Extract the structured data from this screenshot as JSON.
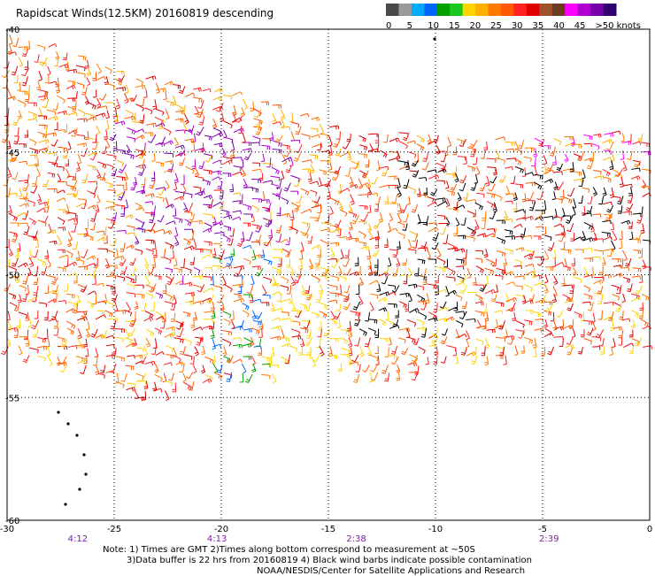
{
  "header": {
    "title": "Rapidscat Winds(12.5KM) 20160819 descending"
  },
  "legend": {
    "units": "knots",
    "colors": [
      "#4a4a4a",
      "#9a9a9a",
      "#00aaff",
      "#0066ff",
      "#00a000",
      "#1cc81c",
      "#ffd400",
      "#ffb000",
      "#ff7a00",
      "#ff5a00",
      "#ff2020",
      "#e00000",
      "#a0522d",
      "#6b3a1f",
      "#ff00ff",
      "#b000d0",
      "#7700aa",
      "#300070"
    ],
    "labels": [
      "0",
      "5",
      "10",
      "15",
      "20",
      "25",
      "30",
      "35",
      "40",
      "45",
      ">50 knots"
    ]
  },
  "map": {
    "lon_ticks": [
      "-30",
      "-25",
      "-20",
      "-15",
      "-10",
      "-5",
      "0"
    ],
    "lat_ticks": [
      "-40",
      "-45",
      "-50",
      "-55",
      "-60"
    ],
    "time_labels": [
      "4:12",
      "4:13",
      "2:38",
      "2:39"
    ],
    "swath_upper": {
      "colors": [
        "#ff2020",
        "#ff5a00",
        "#ff7a00",
        "#ffb000",
        "#e00000",
        "#b000d0",
        "#7700aa",
        "#000000",
        "#ff00ff"
      ]
    },
    "swath_lower": {
      "colors": [
        "#ff2020",
        "#ff5a00",
        "#ff7a00",
        "#ffd400",
        "#e00000",
        "#000000",
        "#b000d0",
        "#00a000",
        "#0066ff"
      ]
    }
  },
  "notes": {
    "line1": "Note: 1) Times are GMT 2)Times along bottom correspond to measurement at ~50S",
    "line2": "3)Data buffer is 22 hrs from 20160819 4) Black wind barbs indicate possible contamination",
    "line3": "NOAA/NESDIS/Center for Satellite Applications and Research"
  }
}
